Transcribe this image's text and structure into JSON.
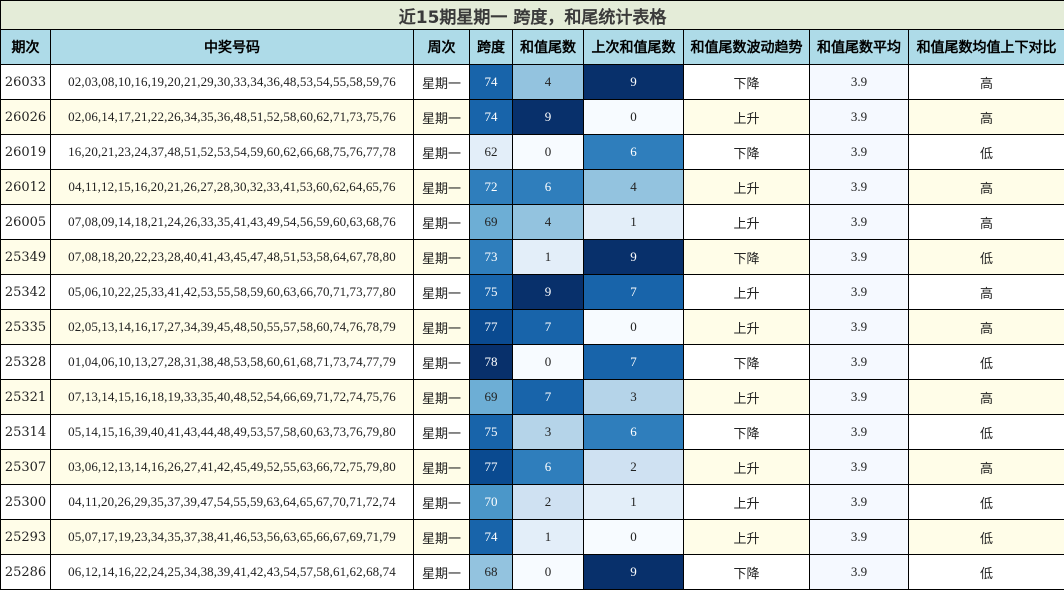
{
  "title": "近15期星期一 跨度，和尾统计表格",
  "headers": [
    "期次",
    "中奖号码",
    "周次",
    "跨度",
    "和值尾数",
    "上次和值尾数",
    "和值尾数波动趋势",
    "和值尾数平均",
    "和值尾数均值上下对比"
  ],
  "rows": [
    {
      "issue": "26033",
      "numbers": "02,03,08,10,16,19,20,21,29,30,33,34,36,48,53,54,55,58,59,76",
      "weekday": "星期一",
      "span": "74",
      "tail": "4",
      "prev_tail": "9",
      "trend": "下降",
      "avg": "3.9",
      "compare": "高"
    },
    {
      "issue": "26026",
      "numbers": "02,06,14,17,21,22,26,34,35,36,48,51,52,58,60,62,71,73,75,76",
      "weekday": "星期一",
      "span": "74",
      "tail": "9",
      "prev_tail": "0",
      "trend": "上升",
      "avg": "3.9",
      "compare": "高"
    },
    {
      "issue": "26019",
      "numbers": "16,20,21,23,24,37,48,51,52,53,54,59,60,62,66,68,75,76,77,78",
      "weekday": "星期一",
      "span": "62",
      "tail": "0",
      "prev_tail": "6",
      "trend": "下降",
      "avg": "3.9",
      "compare": "低"
    },
    {
      "issue": "26012",
      "numbers": "04,11,12,15,16,20,21,26,27,28,30,32,33,41,53,60,62,64,65,76",
      "weekday": "星期一",
      "span": "72",
      "tail": "6",
      "prev_tail": "4",
      "trend": "上升",
      "avg": "3.9",
      "compare": "高"
    },
    {
      "issue": "26005",
      "numbers": "07,08,09,14,18,21,24,26,33,35,41,43,49,54,56,59,60,63,68,76",
      "weekday": "星期一",
      "span": "69",
      "tail": "4",
      "prev_tail": "1",
      "trend": "上升",
      "avg": "3.9",
      "compare": "高"
    },
    {
      "issue": "25349",
      "numbers": "07,08,18,20,22,23,28,40,41,43,45,47,48,51,53,58,64,67,78,80",
      "weekday": "星期一",
      "span": "73",
      "tail": "1",
      "prev_tail": "9",
      "trend": "下降",
      "avg": "3.9",
      "compare": "低"
    },
    {
      "issue": "25342",
      "numbers": "05,06,10,22,25,33,41,42,53,55,58,59,60,63,66,70,71,73,77,80",
      "weekday": "星期一",
      "span": "75",
      "tail": "9",
      "prev_tail": "7",
      "trend": "上升",
      "avg": "3.9",
      "compare": "高"
    },
    {
      "issue": "25335",
      "numbers": "02,05,13,14,16,17,27,34,39,45,48,50,55,57,58,60,74,76,78,79",
      "weekday": "星期一",
      "span": "77",
      "tail": "7",
      "prev_tail": "0",
      "trend": "上升",
      "avg": "3.9",
      "compare": "高"
    },
    {
      "issue": "25328",
      "numbers": "01,04,06,10,13,27,28,31,38,48,53,58,60,61,68,71,73,74,77,79",
      "weekday": "星期一",
      "span": "78",
      "tail": "0",
      "prev_tail": "7",
      "trend": "下降",
      "avg": "3.9",
      "compare": "低"
    },
    {
      "issue": "25321",
      "numbers": "07,13,14,15,16,18,19,33,35,40,48,52,54,66,69,71,72,74,75,76",
      "weekday": "星期一",
      "span": "69",
      "tail": "7",
      "prev_tail": "3",
      "trend": "上升",
      "avg": "3.9",
      "compare": "高"
    },
    {
      "issue": "25314",
      "numbers": "05,14,15,16,39,40,41,43,44,48,49,53,57,58,60,63,73,76,79,80",
      "weekday": "星期一",
      "span": "75",
      "tail": "3",
      "prev_tail": "6",
      "trend": "下降",
      "avg": "3.9",
      "compare": "低"
    },
    {
      "issue": "25307",
      "numbers": "03,06,12,13,14,16,26,27,41,42,45,49,52,55,63,66,72,75,79,80",
      "weekday": "星期一",
      "span": "77",
      "tail": "6",
      "prev_tail": "2",
      "trend": "上升",
      "avg": "3.9",
      "compare": "高"
    },
    {
      "issue": "25300",
      "numbers": "04,11,20,26,29,35,37,39,47,54,55,59,63,64,65,67,70,71,72,74",
      "weekday": "星期一",
      "span": "70",
      "tail": "2",
      "prev_tail": "1",
      "trend": "上升",
      "avg": "3.9",
      "compare": "低"
    },
    {
      "issue": "25293",
      "numbers": "05,07,17,19,23,34,35,37,38,41,46,53,56,63,65,66,67,69,71,79",
      "weekday": "星期一",
      "span": "74",
      "tail": "1",
      "prev_tail": "0",
      "trend": "上升",
      "avg": "3.9",
      "compare": "低"
    },
    {
      "issue": "25286",
      "numbers": "06,12,14,16,22,24,25,34,38,39,41,42,43,54,57,58,61,62,68,74",
      "weekday": "星期一",
      "span": "68",
      "tail": "0",
      "prev_tail": "9",
      "trend": "下降",
      "avg": "3.9",
      "compare": "低"
    }
  ],
  "colors": {
    "title_bg": "#e4ecd8",
    "header_bg": "#aedbe8",
    "row_odd_bg": "#ffffff",
    "row_even_bg": "#fffde8",
    "heat_scale": [
      "#f7fbff",
      "#e3eef9",
      "#cfe1f2",
      "#b5d4e9",
      "#93c3df",
      "#6daed5",
      "#4b97c9",
      "#2f7ebc",
      "#1864aa",
      "#0a4a90",
      "#08306b"
    ]
  }
}
